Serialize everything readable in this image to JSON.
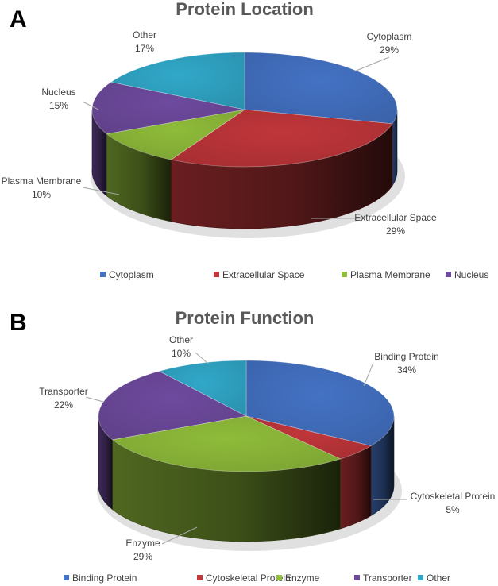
{
  "chart_data": [
    {
      "type": "pie",
      "panel": "A",
      "title": "Protein Location",
      "categories": [
        "Cytoplasm",
        "Extracellular Space",
        "Plasma Membrane",
        "Nucleus",
        "Other"
      ],
      "values": [
        29,
        29,
        10,
        15,
        17
      ],
      "value_suffix": "%",
      "colors": [
        "#4472c4",
        "#c0363a",
        "#8fbc3a",
        "#6e4a9e",
        "#31a8c9"
      ],
      "three_d": true,
      "legend_position": "bottom"
    },
    {
      "type": "pie",
      "panel": "B",
      "title": "Protein Function",
      "categories": [
        "Binding Protein",
        "Cytoskeletal Protein",
        "Enzyme",
        "Transporter",
        "Other"
      ],
      "values": [
        34,
        5,
        29,
        22,
        10
      ],
      "value_suffix": "%",
      "colors": [
        "#4472c4",
        "#c0363a",
        "#8fbc3a",
        "#6e4a9e",
        "#31a8c9"
      ],
      "three_d": true,
      "legend_position": "bottom"
    }
  ]
}
